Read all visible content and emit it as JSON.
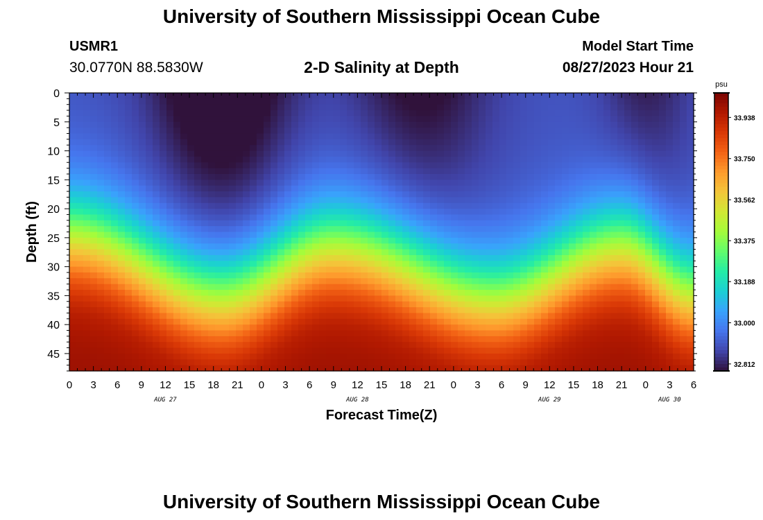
{
  "header": {
    "title": "University of Southern Mississippi Ocean Cube",
    "station": "USMR1",
    "coordinates": "30.0770N  88.5830W",
    "subtitle": "2-D Salinity at Depth",
    "model_start_label": "Model Start Time",
    "model_start_value": "08/27/2023 Hour 21"
  },
  "footer": {
    "title": "University of Southern Mississippi Ocean Cube"
  },
  "chart_data": {
    "type": "heatmap",
    "xlabel": "Forecast Time(Z)",
    "ylabel": "Depth (ft)",
    "colorbar_unit": "psu",
    "x_tick_labels": [
      "0",
      "3",
      "6",
      "9",
      "12",
      "15",
      "18",
      "21",
      "0",
      "3",
      "6",
      "9",
      "12",
      "15",
      "18",
      "21",
      "0",
      "3",
      "6",
      "9",
      "12",
      "15",
      "18",
      "21",
      "0",
      "3",
      "6"
    ],
    "x_hours_from_start": [
      0,
      3,
      6,
      9,
      12,
      15,
      18,
      21,
      24,
      27,
      30,
      33,
      36,
      39,
      42,
      45,
      48,
      51,
      54,
      57,
      60,
      63,
      66,
      69,
      72,
      75,
      78
    ],
    "date_labels": [
      {
        "label": "AUG 27",
        "hour": 12
      },
      {
        "label": "AUG 28",
        "hour": 36
      },
      {
        "label": "AUG 29",
        "hour": 60
      },
      {
        "label": "AUG 30",
        "hour": 75
      }
    ],
    "y_ticks": [
      0,
      5,
      10,
      15,
      20,
      25,
      30,
      35,
      40,
      45
    ],
    "ylim": [
      0,
      48
    ],
    "xlim": [
      0,
      78
    ],
    "colorbar_ticks": [
      "33.938",
      "33.750",
      "33.562",
      "33.375",
      "33.188",
      "33.000",
      "32.812"
    ],
    "color_range": [
      32.78,
      34.05
    ],
    "colormap": [
      "#30123b",
      "#4145ab",
      "#4675ed",
      "#39a2fc",
      "#1bcfd4",
      "#24eca6",
      "#61fc6c",
      "#a4fc3b",
      "#d1e834",
      "#f3c63a",
      "#fe9b2d",
      "#f36315",
      "#d93806",
      "#b11901",
      "#7a0403"
    ],
    "surface_salinity_profile": [
      {
        "hour": 0,
        "isohaline_33188_depth_ft": 24
      },
      {
        "hour": 19,
        "isohaline_33188_depth_ft": 35
      },
      {
        "hour": 33,
        "isohaline_33188_depth_ft": 26
      },
      {
        "hour": 53,
        "isohaline_33188_depth_ft": 35
      },
      {
        "hour": 69,
        "isohaline_33188_depth_ft": 26
      },
      {
        "hour": 78,
        "isohaline_33188_depth_ft": 34
      }
    ]
  }
}
